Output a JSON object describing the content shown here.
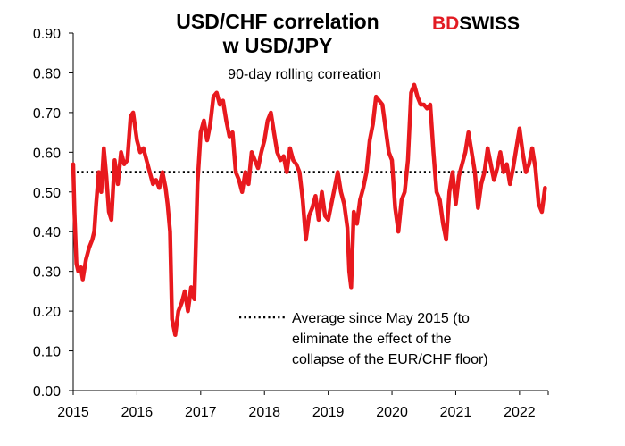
{
  "brand": {
    "part1": "BD",
    "part2": "SWISS",
    "colors": {
      "part1": "#e21b23",
      "part2": "#000000"
    }
  },
  "chart_data": {
    "type": "line",
    "title_line1": "USD/CHF correlation",
    "title_line2": "w USD/JPY",
    "subtitle": "90-day rolling correation",
    "xlabel": "",
    "ylabel": "",
    "ylim": [
      0.0,
      0.9
    ],
    "xlim": [
      2015.0,
      2022.45
    ],
    "y_ticks": [
      "0.00",
      "0.10",
      "0.20",
      "0.30",
      "0.40",
      "0.50",
      "0.60",
      "0.70",
      "0.80",
      "0.90"
    ],
    "x_ticks": [
      "2015",
      "2016",
      "2017",
      "2018",
      "2019",
      "2020",
      "2021",
      "2022"
    ],
    "grid": false,
    "legend_position": "inside-bottom-right",
    "average_line": {
      "label": "Average since May 2015 (to eliminate the effect of the collapse of the EUR/CHF floor)",
      "label_lines": [
        "Average since May 2015 (to",
        "eliminate the effect of the",
        "collapse of the EUR/CHF floor)"
      ],
      "value": 0.55,
      "style": "dotted",
      "color": "#000000"
    },
    "series": [
      {
        "color": "#e8191e",
        "x": [
          2015.0,
          2015.02,
          2015.05,
          2015.08,
          2015.12,
          2015.15,
          2015.2,
          2015.25,
          2015.3,
          2015.33,
          2015.36,
          2015.4,
          2015.44,
          2015.48,
          2015.52,
          2015.56,
          2015.6,
          2015.65,
          2015.7,
          2015.75,
          2015.8,
          2015.85,
          2015.9,
          2015.94,
          2016.0,
          2016.05,
          2016.1,
          2016.15,
          2016.2,
          2016.25,
          2016.3,
          2016.35,
          2016.4,
          2016.45,
          2016.48,
          2016.52,
          2016.55,
          2016.6,
          2016.65,
          2016.7,
          2016.75,
          2016.8,
          2016.85,
          2016.9,
          2016.95,
          2017.0,
          2017.05,
          2017.1,
          2017.15,
          2017.2,
          2017.25,
          2017.3,
          2017.35,
          2017.4,
          2017.45,
          2017.5,
          2017.55,
          2017.6,
          2017.65,
          2017.7,
          2017.75,
          2017.8,
          2017.85,
          2017.9,
          2017.95,
          2018.0,
          2018.05,
          2018.1,
          2018.15,
          2018.2,
          2018.25,
          2018.3,
          2018.35,
          2018.4,
          2018.45,
          2018.5,
          2018.55,
          2018.6,
          2018.65,
          2018.7,
          2018.75,
          2018.8,
          2018.85,
          2018.9,
          2018.95,
          2019.0,
          2019.05,
          2019.1,
          2019.15,
          2019.2,
          2019.25,
          2019.3,
          2019.33,
          2019.36,
          2019.4,
          2019.45,
          2019.5,
          2019.55,
          2019.6,
          2019.65,
          2019.7,
          2019.75,
          2019.8,
          2019.85,
          2019.9,
          2019.95,
          2020.0,
          2020.05,
          2020.1,
          2020.15,
          2020.2,
          2020.25,
          2020.3,
          2020.35,
          2020.4,
          2020.45,
          2020.5,
          2020.55,
          2020.6,
          2020.65,
          2020.7,
          2020.75,
          2020.8,
          2020.85,
          2020.9,
          2020.95,
          2021.0,
          2021.05,
          2021.1,
          2021.15,
          2021.2,
          2021.25,
          2021.3,
          2021.35,
          2021.4,
          2021.45,
          2021.5,
          2021.55,
          2021.6,
          2021.65,
          2021.7,
          2021.75,
          2021.8,
          2021.85,
          2021.9,
          2021.95,
          2022.0,
          2022.05,
          2022.1,
          2022.15,
          2022.2,
          2022.25,
          2022.3,
          2022.35,
          2022.4
        ],
        "values": [
          0.57,
          0.45,
          0.32,
          0.3,
          0.31,
          0.28,
          0.33,
          0.36,
          0.38,
          0.4,
          0.47,
          0.55,
          0.5,
          0.61,
          0.54,
          0.45,
          0.43,
          0.58,
          0.52,
          0.6,
          0.57,
          0.58,
          0.69,
          0.7,
          0.63,
          0.6,
          0.61,
          0.58,
          0.55,
          0.52,
          0.53,
          0.51,
          0.55,
          0.51,
          0.47,
          0.4,
          0.18,
          0.14,
          0.2,
          0.22,
          0.25,
          0.2,
          0.26,
          0.23,
          0.52,
          0.65,
          0.68,
          0.63,
          0.67,
          0.74,
          0.75,
          0.72,
          0.73,
          0.68,
          0.64,
          0.65,
          0.55,
          0.53,
          0.5,
          0.55,
          0.52,
          0.6,
          0.58,
          0.56,
          0.6,
          0.63,
          0.68,
          0.7,
          0.65,
          0.6,
          0.58,
          0.59,
          0.55,
          0.61,
          0.58,
          0.57,
          0.55,
          0.48,
          0.38,
          0.44,
          0.46,
          0.49,
          0.43,
          0.5,
          0.44,
          0.43,
          0.47,
          0.51,
          0.55,
          0.5,
          0.47,
          0.41,
          0.3,
          0.26,
          0.45,
          0.42,
          0.48,
          0.51,
          0.55,
          0.63,
          0.67,
          0.74,
          0.73,
          0.72,
          0.66,
          0.6,
          0.58,
          0.46,
          0.4,
          0.48,
          0.5,
          0.58,
          0.75,
          0.77,
          0.74,
          0.72,
          0.72,
          0.71,
          0.72,
          0.6,
          0.5,
          0.48,
          0.42,
          0.38,
          0.5,
          0.55,
          0.47,
          0.54,
          0.57,
          0.6,
          0.65,
          0.6,
          0.55,
          0.46,
          0.52,
          0.55,
          0.61,
          0.57,
          0.53,
          0.56,
          0.6,
          0.55,
          0.57,
          0.52,
          0.56,
          0.61,
          0.66,
          0.6,
          0.55,
          0.57,
          0.61,
          0.56,
          0.47,
          0.45,
          0.51
        ]
      }
    ]
  }
}
